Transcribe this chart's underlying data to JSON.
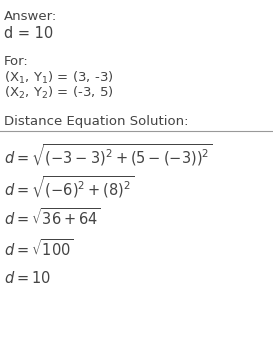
{
  "background_color": "#ffffff",
  "text_color": "#444444",
  "line_color": "#999999",
  "answer_label": "Answer:",
  "answer_value": "d = 10",
  "for_label": "For:",
  "point1_label": "(X$_1$, Y$_1$) = (3, -3)",
  "point2_label": "(X$_2$, Y$_2$) = (-3, 5)",
  "section_label": "Distance Equation Solution:",
  "eq1": "$d = \\sqrt{(-3-3)^2+(5-(-3))^2}$",
  "eq2": "$d = \\sqrt{(-6)^2+(8)^2}$",
  "eq3": "$d = \\sqrt{36+64}$",
  "eq4": "$d = \\sqrt{100}$",
  "eq5": "$d = 10$",
  "fs_label": 9.5,
  "fs_answer": 10.5,
  "fs_math": 10.5,
  "fs_section": 9.5
}
